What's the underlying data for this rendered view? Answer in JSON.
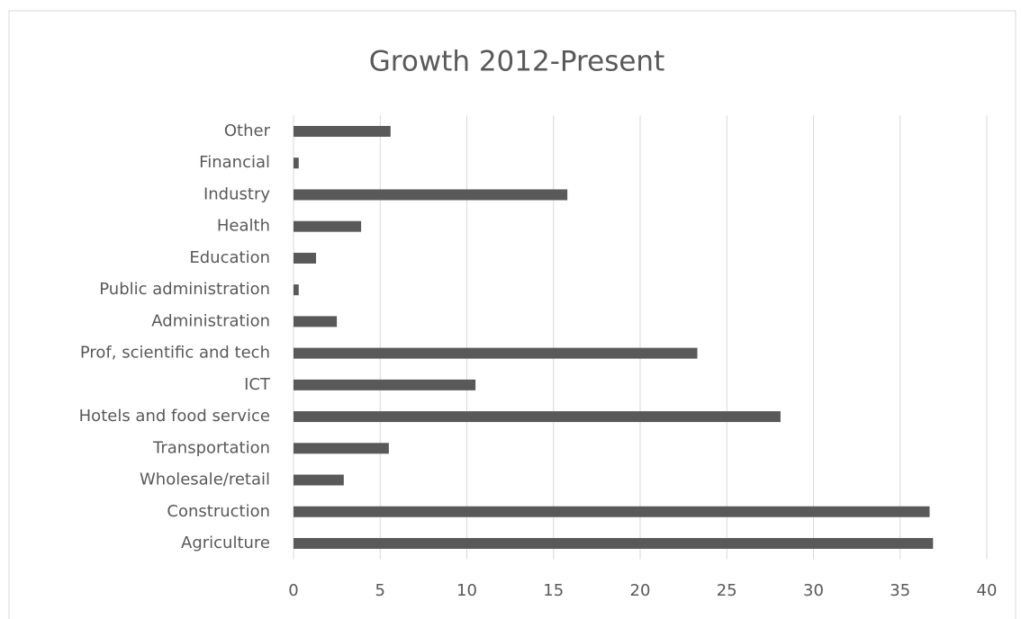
{
  "chart_data": {
    "type": "bar",
    "orientation": "horizontal",
    "title": "Growth 2012-Present",
    "categories": [
      "Agriculture",
      "Construction",
      "Wholesale/retail",
      "Transportation",
      "Hotels and food service",
      "ICT",
      "Prof, scientific and tech",
      "Administration",
      "Public administration",
      "Education",
      "Health",
      "Industry",
      "Financial",
      "Other"
    ],
    "values": [
      36.9,
      36.7,
      2.9,
      5.5,
      28.1,
      10.5,
      23.3,
      2.5,
      0.3,
      1.3,
      3.9,
      15.8,
      0.3,
      5.6
    ],
    "color": "#595959",
    "xlim": [
      0,
      40
    ],
    "xticks": [
      0,
      5,
      10,
      15,
      20,
      25,
      30,
      35,
      40
    ],
    "grid": true
  }
}
